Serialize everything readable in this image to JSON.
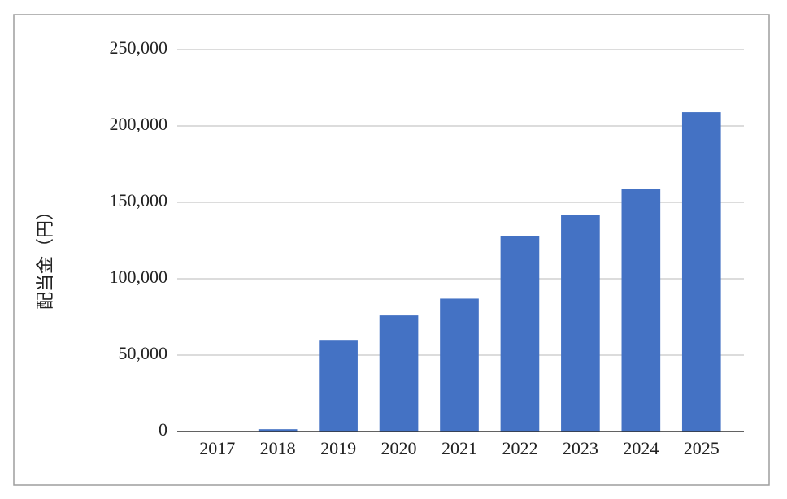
{
  "chart_data": {
    "type": "bar",
    "y_label": "配当金（円）",
    "categories": [
      "2017",
      "2018",
      "2019",
      "2020",
      "2021",
      "2022",
      "2023",
      "2024",
      "2025"
    ],
    "values": [
      0,
      1500,
      60000,
      76000,
      87000,
      128000,
      142000,
      159000,
      209000
    ],
    "color": "#4472c4",
    "ylim": [
      0,
      250000
    ],
    "yticks": [
      0,
      {
        "value": 50000,
        "label": "50,000"
      },
      {
        "value": 100000,
        "label": "100,000"
      },
      {
        "value": 150000,
        "label": "150,000"
      },
      {
        "value": 200000,
        "label": "200,000"
      },
      {
        "value": 250000,
        "label": "250,000"
      }
    ],
    "grid": true
  }
}
